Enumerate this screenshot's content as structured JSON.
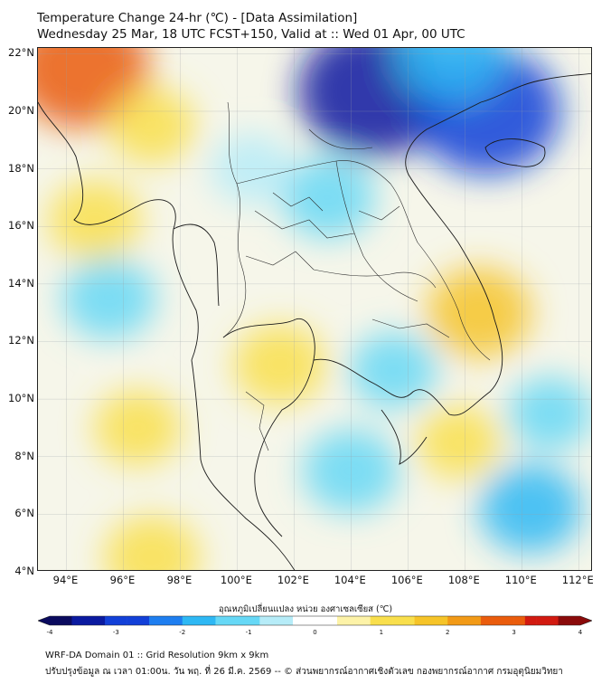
{
  "header": {
    "title_line1": "Temperature Change 24-hr (℃) - [Data Assimilation]",
    "title_line2": "Wednesday 25 Mar, 18 UTC FCST+150, Valid at :: Wed 01 Apr, 00 UTC"
  },
  "map": {
    "lon_ticks": [
      "94°E",
      "96°E",
      "98°E",
      "100°E",
      "102°E",
      "104°E",
      "106°E",
      "108°E",
      "110°E",
      "112°E"
    ],
    "lat_ticks": [
      "22°N",
      "20°N",
      "18°N",
      "16°N",
      "14°N",
      "12°N",
      "10°N",
      "8°N",
      "6°N",
      "4°N"
    ],
    "lon_range": [
      93,
      112.5
    ],
    "lat_range": [
      4,
      22.2
    ],
    "anomaly_spots": [
      {
        "lon": 94.5,
        "lat": 21.5,
        "change": 2.7,
        "note": "warm"
      },
      {
        "lon": 95.0,
        "lat": 16.2,
        "change": 1.2
      },
      {
        "lon": 97.0,
        "lat": 19.5,
        "change": 1.0
      },
      {
        "lon": 104.8,
        "lat": 20.7,
        "change": -3.2,
        "note": "cold"
      },
      {
        "lon": 108.8,
        "lat": 20.0,
        "change": -3.0,
        "note": "cold"
      },
      {
        "lon": 107.5,
        "lat": 22.0,
        "change": -1.8
      },
      {
        "lon": 103.2,
        "lat": 17.0,
        "change": -1.2
      },
      {
        "lon": 100.5,
        "lat": 18.0,
        "change": -0.8
      },
      {
        "lon": 108.5,
        "lat": 13.0,
        "change": 1.6
      },
      {
        "lon": 101.5,
        "lat": 11.2,
        "change": 1.2
      },
      {
        "lon": 95.5,
        "lat": 13.5,
        "change": -1.2
      },
      {
        "lon": 96.5,
        "lat": 9.0,
        "change": 1.0
      },
      {
        "lon": 104.0,
        "lat": 7.5,
        "change": -1.3
      },
      {
        "lon": 110.3,
        "lat": 6.2,
        "change": -1.5
      },
      {
        "lon": 111.0,
        "lat": 9.5,
        "change": -0.9
      },
      {
        "lon": 97.0,
        "lat": 4.5,
        "change": 1.3
      },
      {
        "lon": 105.5,
        "lat": 11.0,
        "change": -1.0
      },
      {
        "lon": 107.8,
        "lat": 8.5,
        "change": 0.9
      }
    ]
  },
  "colorbar": {
    "label": "อุณหภูมิเปลี่ยนแปลง หน่วย องศาเซลเซียส (℃)",
    "ticks": [
      "-4",
      "-3",
      "-2",
      "-1",
      "0",
      "1",
      "2",
      "3",
      "4"
    ],
    "min": -4,
    "max": 4,
    "colors": [
      "#0a0a5e",
      "#0a1aa0",
      "#1240d8",
      "#1e7ef0",
      "#2eb8f4",
      "#66d8f6",
      "#b6ecf8",
      "#ffffff",
      "#fdf3a8",
      "#f9df4c",
      "#f6c428",
      "#f29a16",
      "#ea5c0c",
      "#d21a10",
      "#8a0a0a"
    ]
  },
  "footer": {
    "line1": "WRF-DA Domain 01 :: Grid Resolution 9km x 9km",
    "line2": "ปรับปรุงข้อมูล ณ เวลา 01:00น. วัน พฤ. ที่ 26 มี.ค. 2569 -- © ส่วนพยากรณ์อากาศเชิงตัวเลข กองพยากรณ์อากาศ กรมอุตุนิยมวิทยา"
  }
}
